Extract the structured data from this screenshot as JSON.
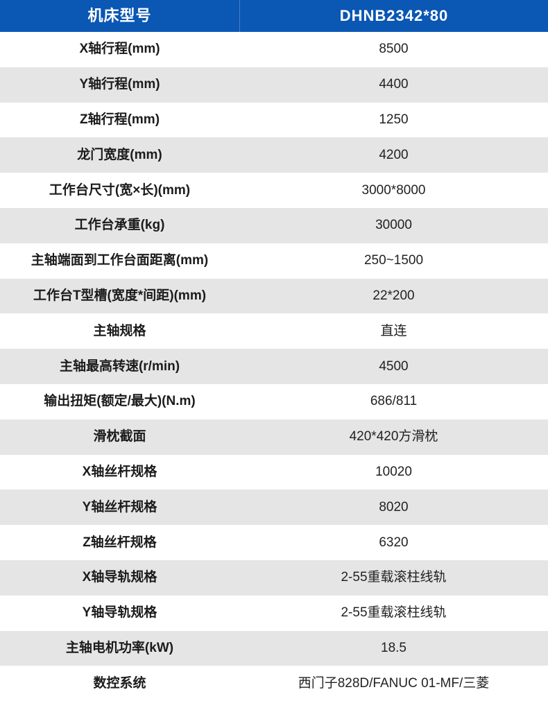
{
  "header": {
    "model_label": "机床型号",
    "model_value": "DHNB2342*80"
  },
  "rows": [
    {
      "label": "X轴行程(mm)",
      "value": "8500"
    },
    {
      "label": "Y轴行程(mm)",
      "value": "4400"
    },
    {
      "label": "Z轴行程(mm)",
      "value": "1250"
    },
    {
      "label": "龙门宽度(mm)",
      "value": "4200"
    },
    {
      "label": "工作台尺寸(宽×长)(mm)",
      "value": "3000*8000"
    },
    {
      "label": "工作台承重(kg)",
      "value": "30000"
    },
    {
      "label": "主轴端面到工作台面距离(mm)",
      "value": "250~1500"
    },
    {
      "label": "工作台T型槽(宽度*间距)(mm)",
      "value": "22*200"
    },
    {
      "label": "主轴规格",
      "value": "直连"
    },
    {
      "label": "主轴最高转速(r/min)",
      "value": "4500"
    },
    {
      "label": "输出扭矩(额定/最大)(N.m)",
      "value": "686/811"
    },
    {
      "label": "滑枕截面",
      "value": "420*420方滑枕"
    },
    {
      "label": "X轴丝杆规格",
      "value": "10020"
    },
    {
      "label": "Y轴丝杆规格",
      "value": "8020"
    },
    {
      "label": "Z轴丝杆规格",
      "value": "6320"
    },
    {
      "label": "X轴导轨规格",
      "value": "2-55重载滚柱线轨"
    },
    {
      "label": "Y轴导轨规格",
      "value": "2-55重载滚柱线轨"
    },
    {
      "label": "主轴电机功率(kW)",
      "value": "18.5"
    },
    {
      "label": "数控系统",
      "value": "西门子828D/FANUC 01-MF/三菱"
    }
  ],
  "colors": {
    "header_bg": "#0a57b4",
    "row_alt_bg": "#e5e5e5",
    "header_text": "#ffffff",
    "label_color": "#1b1b1b",
    "value_color": "#222222"
  },
  "chart_data": {
    "type": "table",
    "columns": [
      "机床型号",
      "DHNB2342*80"
    ],
    "rows": [
      [
        "X轴行程(mm)",
        "8500"
      ],
      [
        "Y轴行程(mm)",
        "4400"
      ],
      [
        "Z轴行程(mm)",
        "1250"
      ],
      [
        "龙门宽度(mm)",
        "4200"
      ],
      [
        "工作台尺寸(宽×长)(mm)",
        "3000*8000"
      ],
      [
        "工作台承重(kg)",
        "30000"
      ],
      [
        "主轴端面到工作台面距离(mm)",
        "250~1500"
      ],
      [
        "工作台T型槽(宽度*间距)(mm)",
        "22*200"
      ],
      [
        "主轴规格",
        "直连"
      ],
      [
        "主轴最高转速(r/min)",
        "4500"
      ],
      [
        "输出扭矩(额定/最大)(N.m)",
        "686/811"
      ],
      [
        "滑枕截面",
        "420*420方滑枕"
      ],
      [
        "X轴丝杆规格",
        "10020"
      ],
      [
        "Y轴丝杆规格",
        "8020"
      ],
      [
        "Z轴丝杆规格",
        "6320"
      ],
      [
        "X轴导轨规格",
        "2-55重载滚柱线轨"
      ],
      [
        "Y轴导轨规格",
        "2-55重载滚柱线轨"
      ],
      [
        "主轴电机功率(kW)",
        "18.5"
      ],
      [
        "数控系统",
        "西门子828D/FANUC 01-MF/三菱"
      ]
    ]
  }
}
